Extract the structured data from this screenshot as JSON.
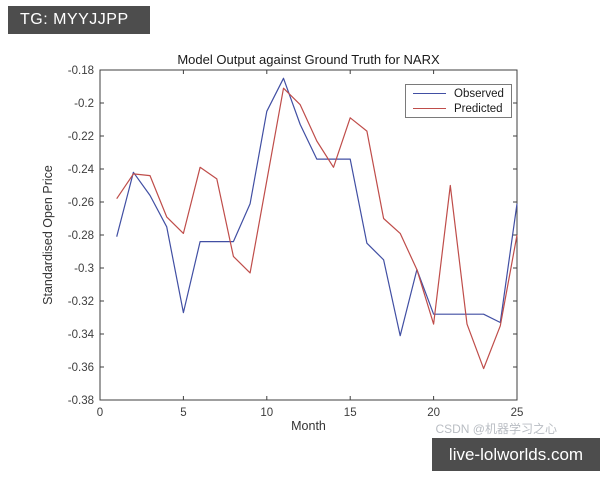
{
  "page": {
    "top_badge": "TG: MYYJJPP",
    "bottom_badge": "live-lolworlds.com",
    "watermark": "CSDN @机器学习之心"
  },
  "colors": {
    "badge_bg": "#4d4d4d",
    "badge_text": "#ffffff",
    "watermark_text": "#b9bdc3",
    "axis": "#3f3f3f",
    "observed_line": "#414fa3",
    "predicted_line": "#bf4d4a"
  },
  "chart_data": {
    "type": "line",
    "title": "Model Output against Ground Truth for NARX",
    "xlabel": "Month",
    "ylabel": "Standardised Open Price",
    "xlim": [
      0,
      25
    ],
    "ylim": [
      -0.38,
      -0.18
    ],
    "grid": false,
    "legend_position": "top-right",
    "x_ticks": [
      0,
      5,
      10,
      15,
      20,
      25
    ],
    "x_tick_labels": [
      "0",
      "5",
      "10",
      "15",
      "20",
      "25"
    ],
    "y_ticks": [
      -0.18,
      -0.2,
      -0.22,
      -0.24,
      -0.26,
      -0.28,
      -0.3,
      -0.32,
      -0.34,
      -0.36,
      -0.38
    ],
    "y_tick_labels": [
      "-0.18",
      "-0.2",
      "-0.22",
      "-0.24",
      "-0.26",
      "-0.28",
      "-0.3",
      "-0.32",
      "-0.34",
      "-0.36",
      "-0.38"
    ],
    "x": [
      1,
      2,
      3,
      4,
      5,
      6,
      7,
      8,
      9,
      10,
      11,
      12,
      13,
      14,
      15,
      16,
      17,
      18,
      19,
      20,
      21,
      22,
      23,
      24,
      25
    ],
    "series": [
      {
        "name": "Observed",
        "color": "#414fa3",
        "values": [
          -0.281,
          -0.242,
          -0.256,
          -0.275,
          -0.327,
          -0.284,
          -0.284,
          -0.284,
          -0.261,
          -0.205,
          -0.185,
          -0.213,
          -0.234,
          -0.234,
          -0.234,
          -0.285,
          -0.295,
          -0.341,
          -0.301,
          -0.328,
          -0.328,
          -0.328,
          -0.328,
          -0.333,
          -0.261
        ]
      },
      {
        "name": "Predicted",
        "color": "#bf4d4a",
        "values": [
          -0.258,
          -0.243,
          -0.244,
          -0.269,
          -0.279,
          -0.239,
          -0.246,
          -0.293,
          -0.303,
          -0.247,
          -0.191,
          -0.201,
          -0.223,
          -0.239,
          -0.209,
          -0.217,
          -0.27,
          -0.279,
          -0.301,
          -0.334,
          -0.25,
          -0.334,
          -0.361,
          -0.335,
          -0.28
        ]
      }
    ]
  }
}
